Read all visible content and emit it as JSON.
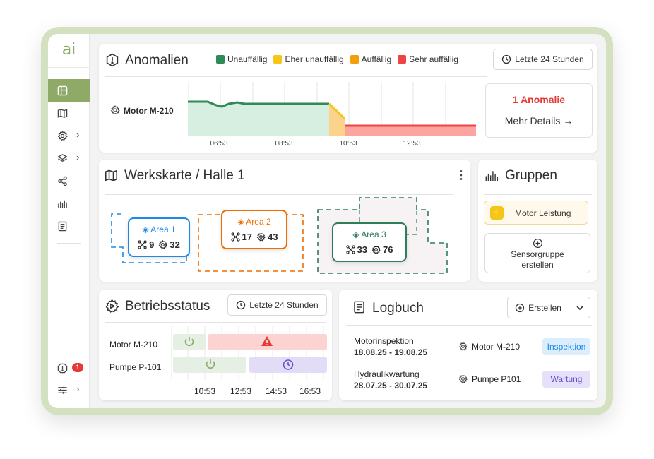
{
  "sidebar": {
    "logo": "ai",
    "items": [
      {
        "name": "dashboard",
        "icon": "dashboard-icon",
        "active": true
      },
      {
        "name": "map",
        "icon": "map-icon"
      },
      {
        "name": "settings",
        "icon": "gear-icon",
        "has_children": true
      },
      {
        "name": "layers",
        "icon": "layers-icon",
        "has_children": true
      },
      {
        "name": "share",
        "icon": "share-icon"
      },
      {
        "name": "signals",
        "icon": "signal-icon"
      },
      {
        "name": "logbook",
        "icon": "logbook-icon"
      }
    ],
    "alert_count": "1",
    "chevron": "›"
  },
  "anomalien": {
    "title": "Anomalien",
    "legend": [
      {
        "label": "Unauffällig",
        "color": "#2e8b57"
      },
      {
        "label": "Eher unauffällig",
        "color": "#f5c518"
      },
      {
        "label": "Auffällig",
        "color": "#f59e0b"
      },
      {
        "label": "Sehr auffällig",
        "color": "#ef4444"
      }
    ],
    "timerange": "Letzte 24 Stunden",
    "motor_label": "Motor M-210",
    "times": [
      "06:53",
      "08:53",
      "10:53",
      "12:53"
    ],
    "anomaly_count": "1 Anomalie",
    "details_label": "Mehr Details"
  },
  "werkskarte": {
    "title": "Werkskarte / Halle 1",
    "areas": [
      {
        "name": "Area 1",
        "nodes": "9",
        "sensors": "32",
        "color": "#1e88e5"
      },
      {
        "name": "Area 2",
        "nodes": "17",
        "sensors": "43",
        "color": "#ef6c00"
      },
      {
        "name": "Area 3",
        "nodes": "33",
        "sensors": "76",
        "color": "#2e7d5b"
      }
    ]
  },
  "gruppen": {
    "title": "Gruppen",
    "group": "Motor Leistung",
    "create_label_1": "Sensorgruppe",
    "create_label_2": "erstellen"
  },
  "betriebsstatus": {
    "title": "Betriebsstatus",
    "timerange": "Letzte 24 Stunden",
    "rows": [
      "Motor M-210",
      "Pumpe P-101"
    ],
    "times": [
      "10:53",
      "12:53",
      "14:53",
      "16:53"
    ]
  },
  "logbuch": {
    "title": "Logbuch",
    "create_label": "Erstellen",
    "entries": [
      {
        "title": "Motorinspektion",
        "dates": "18.08.25 - 19.08.25",
        "asset": "Motor M-210",
        "tag": "Inspektion"
      },
      {
        "title": "Hydraulikwartung",
        "dates": "28.07.25 - 30.07.25",
        "asset": "Pumpe P101",
        "tag": "Wartung"
      }
    ]
  }
}
